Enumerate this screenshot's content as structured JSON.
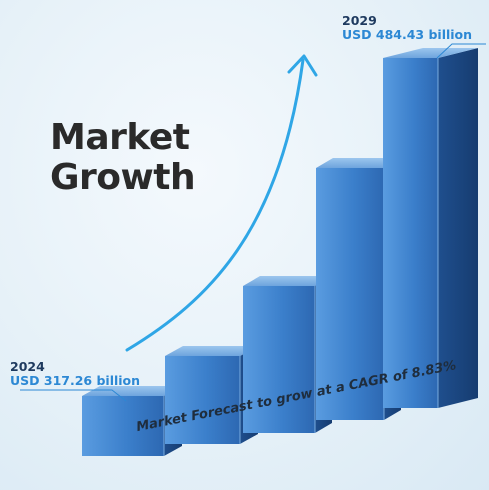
{
  "title_lines": [
    "Market",
    "Growth"
  ],
  "annotations": {
    "start": {
      "year": "2024",
      "value": "USD 317.26 billion"
    },
    "end": {
      "year": "2029",
      "value": "USD 484.43 billion"
    }
  },
  "footer": "Market Forecast to grow at a CAGR of 8.83%",
  "colors": {
    "bar_front_light": "#4c8fd6",
    "bar_front_dark": "#2f6fb8",
    "bar_top": "#7fb2e6",
    "bar_side": "#1f4e8c",
    "arrow": "#2fa6e6",
    "accent": "#2c88d4"
  },
  "chart_data": {
    "type": "bar",
    "title": "Market Growth",
    "categories": [
      "2024",
      "",
      "",
      "",
      "2029"
    ],
    "values": [
      317.26,
      null,
      null,
      null,
      484.43
    ],
    "unit": "USD billion",
    "annotation": "Market Forecast to grow at a CAGR of 8.83%",
    "style": "3d-columns",
    "trend_arrow": true,
    "grid": false,
    "legend": "none"
  }
}
